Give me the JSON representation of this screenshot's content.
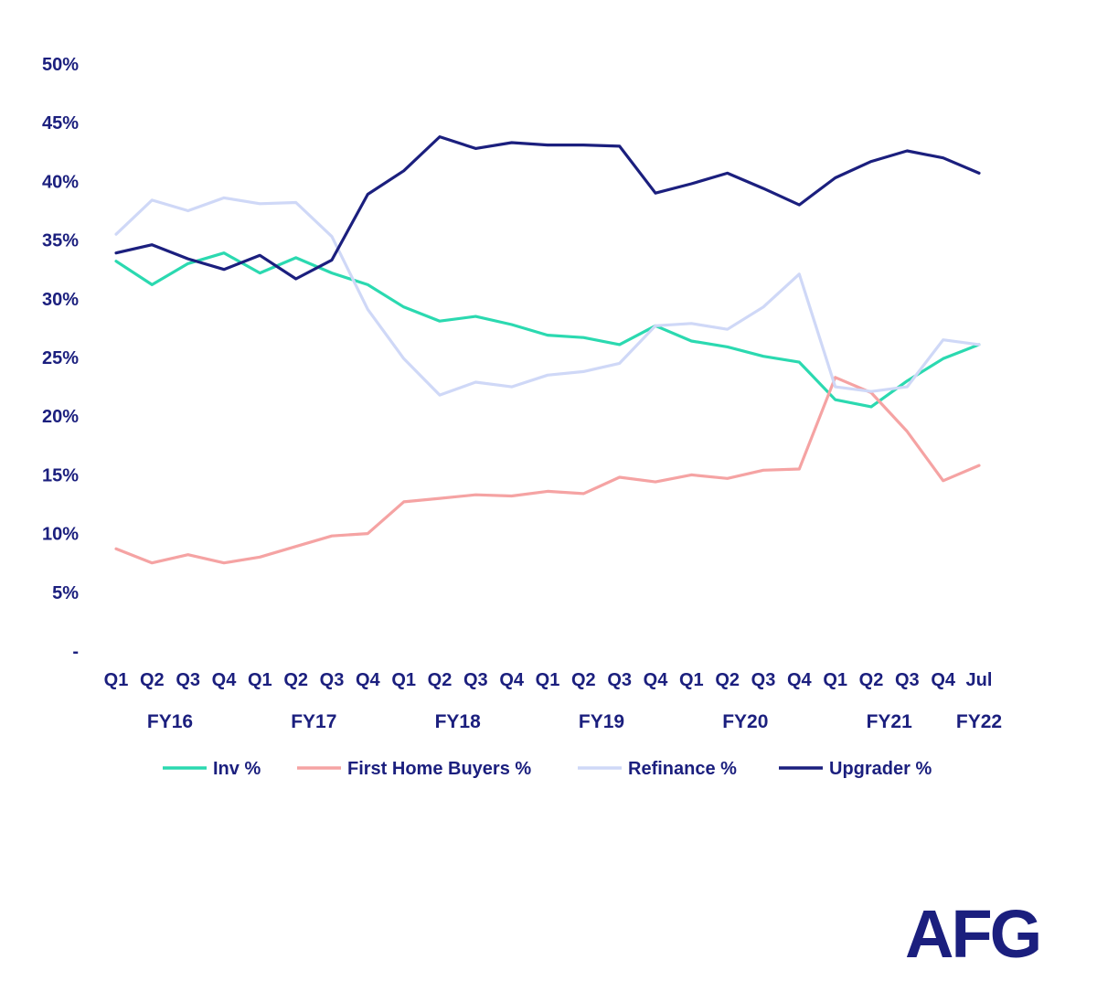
{
  "brand": {
    "logo_text": "AFG",
    "color": "#1b1f7e"
  },
  "colors": {
    "text": "#1b1f7e",
    "background": "#ffffff"
  },
  "chart_data": {
    "type": "line",
    "title": "",
    "xlabel": "",
    "ylabel": "",
    "ylim": [
      0,
      50
    ],
    "y_ticks": [
      {
        "value": 0,
        "label": "-"
      },
      {
        "value": 5,
        "label": "5%"
      },
      {
        "value": 10,
        "label": "10%"
      },
      {
        "value": 15,
        "label": "15%"
      },
      {
        "value": 20,
        "label": "20%"
      },
      {
        "value": 25,
        "label": "25%"
      },
      {
        "value": 30,
        "label": "30%"
      },
      {
        "value": 35,
        "label": "35%"
      },
      {
        "value": 40,
        "label": "40%"
      },
      {
        "value": 45,
        "label": "45%"
      },
      {
        "value": 50,
        "label": "50%"
      }
    ],
    "categories": [
      "Q1",
      "Q2",
      "Q3",
      "Q4",
      "Q1",
      "Q2",
      "Q3",
      "Q4",
      "Q1",
      "Q2",
      "Q3",
      "Q4",
      "Q1",
      "Q2",
      "Q3",
      "Q4",
      "Q1",
      "Q2",
      "Q3",
      "Q4",
      "Q1",
      "Q2",
      "Q3",
      "Q4",
      "Jul"
    ],
    "fiscal_years": [
      {
        "label": "FY16",
        "center": 1.5
      },
      {
        "label": "FY17",
        "center": 5.5
      },
      {
        "label": "FY18",
        "center": 9.5
      },
      {
        "label": "FY19",
        "center": 13.5
      },
      {
        "label": "FY20",
        "center": 17.5
      },
      {
        "label": "FY21",
        "center": 21.5
      },
      {
        "label": "FY22",
        "center": 24
      }
    ],
    "series": [
      {
        "name": "Inv %",
        "color": "#2bd9b0",
        "values": [
          33.2,
          31.2,
          33.0,
          33.9,
          32.2,
          33.5,
          32.2,
          31.2,
          29.3,
          28.1,
          28.5,
          27.8,
          26.9,
          26.7,
          26.1,
          27.7,
          26.4,
          25.9,
          25.1,
          24.6,
          21.4,
          20.8,
          23.0,
          24.9,
          26.1
        ]
      },
      {
        "name": "First Home Buyers %",
        "color": "#f5a3a3",
        "values": [
          8.7,
          7.5,
          8.2,
          7.5,
          8.0,
          8.9,
          9.8,
          10.0,
          12.7,
          13.0,
          13.3,
          13.2,
          13.6,
          13.4,
          14.8,
          14.4,
          15.0,
          14.7,
          15.4,
          15.5,
          23.3,
          22.0,
          18.7,
          14.5,
          15.8
        ]
      },
      {
        "name": "Refinance %",
        "color": "#cfd8f7",
        "values": [
          35.5,
          38.4,
          37.5,
          38.6,
          38.1,
          38.2,
          35.3,
          29.1,
          24.9,
          21.8,
          22.9,
          22.5,
          23.5,
          23.8,
          24.5,
          27.7,
          27.9,
          27.4,
          29.3,
          32.1,
          22.5,
          22.1,
          22.5,
          26.5,
          26.1
        ]
      },
      {
        "name": "Upgrader %",
        "color": "#1b1f7e",
        "values": [
          33.9,
          34.6,
          33.4,
          32.5,
          33.7,
          31.7,
          33.3,
          38.9,
          40.9,
          43.8,
          42.8,
          43.3,
          43.1,
          43.1,
          43.0,
          39.0,
          39.8,
          40.7,
          39.4,
          38.0,
          40.3,
          41.7,
          42.6,
          42.0,
          40.7
        ]
      }
    ],
    "legend_position": "bottom",
    "grid": false
  }
}
